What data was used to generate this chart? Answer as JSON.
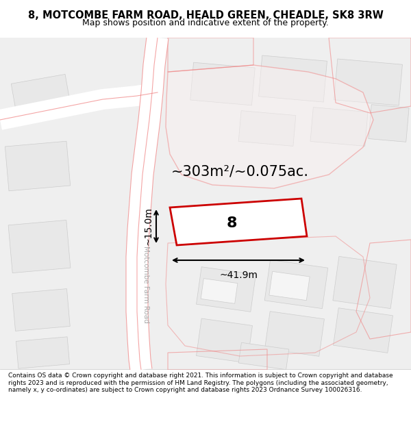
{
  "title": "8, MOTCOMBE FARM ROAD, HEALD GREEN, CHEADLE, SK8 3RW",
  "subtitle": "Map shows position and indicative extent of the property.",
  "footer": "Contains OS data © Crown copyright and database right 2021. This information is subject to Crown copyright and database rights 2023 and is reproduced with the permission of HM Land Registry. The polygons (including the associated geometry, namely x, y co-ordinates) are subject to Crown copyright and database rights 2023 Ordnance Survey 100026316.",
  "bg_color": "#f5f5f5",
  "map_bg": "#f0f0f0",
  "road_color": "#ffffff",
  "building_fill": "#e8e8e8",
  "building_edge": "#d0d0d0",
  "highlight_fill": "#f8f8f8",
  "highlight_edge": "#cc0000",
  "pink_line": "#f08080",
  "area_text": "~303m²/~0.075ac.",
  "dim_width": "~41.9m",
  "dim_height": "~15.0m",
  "number_label": "8",
  "road_label": "Motcombe Farm Road",
  "figsize": [
    6.0,
    6.25
  ],
  "dpi": 100
}
